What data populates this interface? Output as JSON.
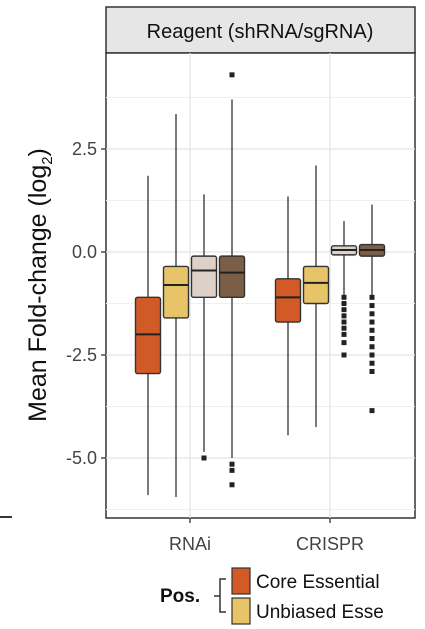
{
  "chart_data": {
    "type": "boxplot",
    "facet_title": "Reagent (shRNA/sgRNA)",
    "ylabel": "Mean Fold-change (log",
    "ylabel_sub": "2",
    "ylabel_close": ")",
    "ylim": [
      -6.2,
      4.4
    ],
    "yticks": [
      2.5,
      0.0,
      -2.5,
      -5.0
    ],
    "ytick_labels": [
      "2.5",
      "0.0",
      "-2.5",
      "-5.0"
    ],
    "categories": [
      "RNAi",
      "CRISPR"
    ],
    "legend": {
      "title": "Pos.",
      "entries": [
        {
          "label": "Core Essential",
          "color": "#d15a26"
        },
        {
          "label": "Unbiased Esse",
          "color": "#e8c468"
        }
      ]
    },
    "series": [
      {
        "color": "#d15a26",
        "boxes": [
          {
            "category": "RNAi",
            "whisker_low": -5.9,
            "q1": -2.95,
            "median": -2.0,
            "q3": -1.1,
            "whisker_high": 1.85,
            "outliers": []
          },
          {
            "category": "CRISPR",
            "whisker_low": -4.45,
            "q1": -1.7,
            "median": -1.1,
            "q3": -0.65,
            "whisker_high": 1.35,
            "outliers": []
          }
        ]
      },
      {
        "color": "#e8c468",
        "boxes": [
          {
            "category": "RNAi",
            "whisker_low": -5.95,
            "q1": -1.6,
            "median": -0.8,
            "q3": -0.35,
            "whisker_high": 3.35,
            "outliers": []
          },
          {
            "category": "CRISPR",
            "whisker_low": -4.25,
            "q1": -1.25,
            "median": -0.75,
            "q3": -0.35,
            "whisker_high": 2.1,
            "outliers": []
          }
        ]
      },
      {
        "color": "#ddd0c6",
        "boxes": [
          {
            "category": "RNAi",
            "whisker_low": -4.85,
            "q1": -1.1,
            "median": -0.45,
            "q3": -0.1,
            "whisker_high": 1.4,
            "outliers": [
              -5.0
            ]
          },
          {
            "category": "CRISPR",
            "whisker_low": -1.05,
            "q1": -0.07,
            "median": 0.05,
            "q3": 0.15,
            "whisker_high": 0.75,
            "outliers": [
              -1.1,
              -1.25,
              -1.4,
              -1.55,
              -1.7,
              -1.85,
              -2.0,
              -2.2,
              -2.5
            ]
          }
        ]
      },
      {
        "color": "#7a5e46",
        "boxes": [
          {
            "category": "RNAi",
            "whisker_low": -5.0,
            "q1": -1.1,
            "median": -0.5,
            "q3": -0.1,
            "whisker_high": 3.7,
            "outliers": [
              4.3,
              -5.15,
              -5.3,
              -5.65
            ]
          },
          {
            "category": "CRISPR",
            "whisker_low": -1.05,
            "q1": -0.1,
            "median": 0.05,
            "q3": 0.18,
            "whisker_high": 1.15,
            "outliers": [
              -1.1,
              -1.3,
              -1.5,
              -1.7,
              -1.9,
              -2.1,
              -2.3,
              -2.5,
              -2.7,
              -2.9,
              -3.85
            ]
          }
        ]
      }
    ]
  }
}
